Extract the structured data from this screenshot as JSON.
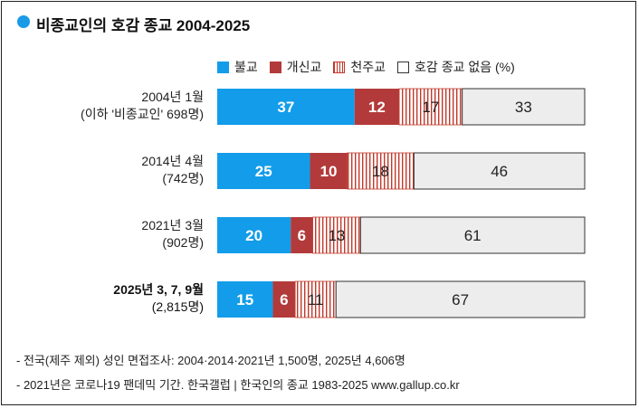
{
  "title": "비종교인의 호감 종교 2004-2025",
  "colors": {
    "buddhism": "#139ce9",
    "protestant": "#b33a3a",
    "catholic_line": "#c0392b",
    "none": "#ededed",
    "title_dot": "#1a9be8"
  },
  "legend": {
    "buddhism": "불교",
    "protestant": "개신교",
    "catholic": "천주교",
    "none": "호감 종교 없음 (%)"
  },
  "rows": [
    {
      "label_line1": "2004년 1월",
      "label_line2": "(이하 '비종교인' 698명)",
      "bold": false
    },
    {
      "label_line1": "2014년 4월",
      "label_line2": "(742명)",
      "bold": false
    },
    {
      "label_line1": "2021년 3월",
      "label_line2": "(902명)",
      "bold": false
    },
    {
      "label_line1": "2025년 3, 7, 9월",
      "label_line2": "(2,815명)",
      "bold": true
    }
  ],
  "chart_data": {
    "type": "bar",
    "orientation": "horizontal-stacked",
    "categories": [
      "2004년 1월",
      "2014년 4월",
      "2021년 3월",
      "2025년 3, 7, 9월"
    ],
    "series": [
      {
        "name": "불교",
        "values": [
          37,
          25,
          20,
          15
        ]
      },
      {
        "name": "개신교",
        "values": [
          12,
          10,
          6,
          6
        ]
      },
      {
        "name": "천주교",
        "values": [
          17,
          18,
          13,
          11
        ]
      },
      {
        "name": "호감 종교 없음",
        "values": [
          33,
          46,
          61,
          67
        ]
      }
    ],
    "unit": "%",
    "xlim": [
      0,
      100
    ]
  },
  "footnotes": [
    "- 전국(제주 제외) 성인 면접조사: 2004·2014·2021년 1,500명, 2025년 4,606명",
    "- 2021년은 코로나19 팬데믹 기간. 한국갤럽 | 한국인의 종교 1983-2025 www.gallup.co.kr"
  ]
}
